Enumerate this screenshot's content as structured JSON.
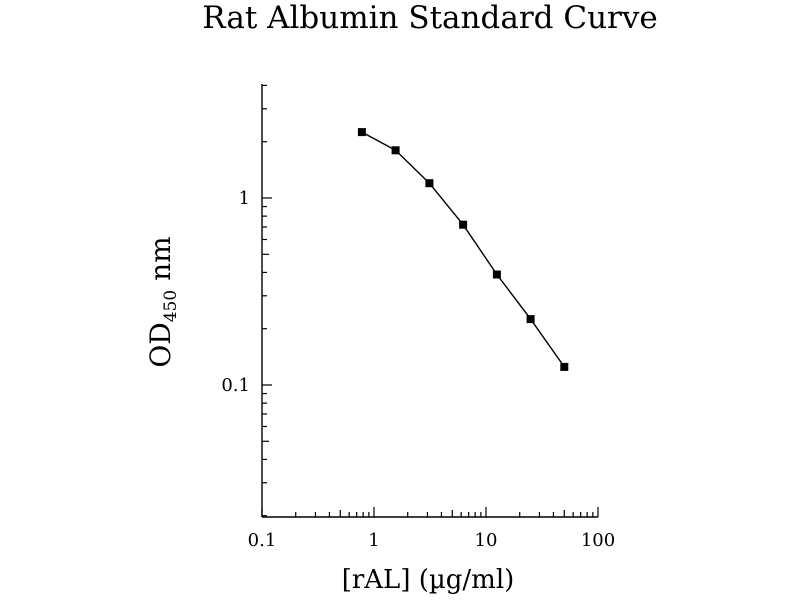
{
  "chart_data": {
    "type": "line",
    "title": "Rat Albumin Standard Curve",
    "ylabel": {
      "main": "OD",
      "sub": "450",
      "unit": " nm"
    },
    "xlabel": "[rAL] (µg/ml)",
    "x_scale": "log",
    "y_scale": "log",
    "xlim": [
      0.1,
      100
    ],
    "ylim": [
      0.02,
      4
    ],
    "x_ticks": [
      {
        "value": 0.1,
        "label": "0.1"
      },
      {
        "value": 1,
        "label": "1"
      },
      {
        "value": 10,
        "label": "10"
      },
      {
        "value": 100,
        "label": "100"
      }
    ],
    "y_ticks": [
      {
        "value": 0.1,
        "label": "0.1"
      },
      {
        "value": 1,
        "label": "1"
      }
    ],
    "grid": false,
    "series": [
      {
        "x": [
          0.78,
          1.56,
          3.125,
          6.25,
          12.5,
          25,
          50
        ],
        "y": [
          2.25,
          1.8,
          1.2,
          0.72,
          0.39,
          0.225,
          0.125
        ]
      }
    ]
  }
}
